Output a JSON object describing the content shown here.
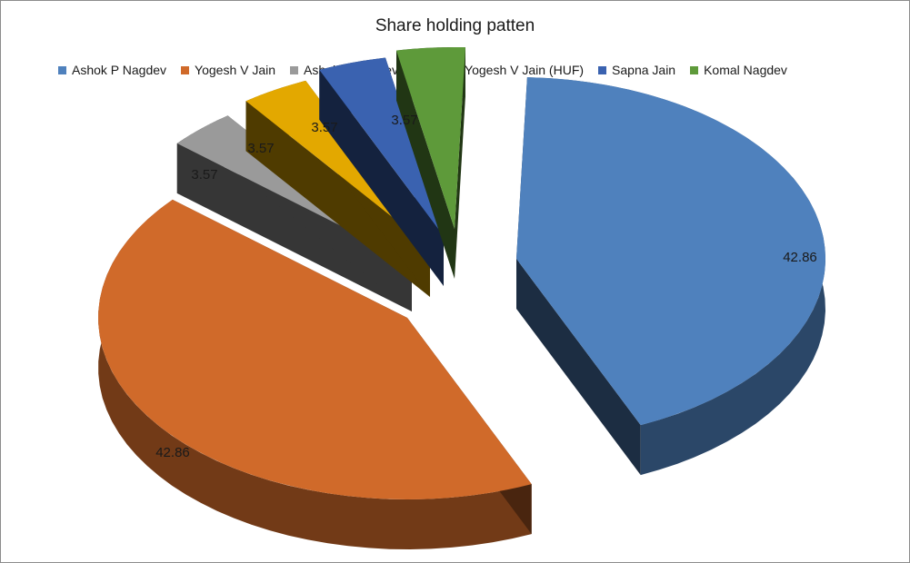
{
  "chart_data": {
    "type": "pie",
    "title": "Share holding patten",
    "legend_position": "top",
    "exploded": true,
    "three_d": true,
    "slices": [
      {
        "name": "Ashok P Nagdev",
        "value": 42.86,
        "label": "42.86",
        "color": "#4f81bd"
      },
      {
        "name": "Yogesh V Jain",
        "value": 42.86,
        "label": "42.86",
        "color": "#d06a2a"
      },
      {
        "name": "Ashok P Nagdev (HUF)",
        "value": 3.57,
        "label": "3.57",
        "color": "#9a9a9a"
      },
      {
        "name": "Yogesh V Jain (HUF)",
        "value": 3.57,
        "label": "3.57",
        "color": "#e3a800"
      },
      {
        "name": "Sapna Jain",
        "value": 3.57,
        "label": "3.57",
        "color": "#3a62b0"
      },
      {
        "name": "Komal Nagdev",
        "value": 3.57,
        "label": "3.57",
        "color": "#5e9a3a"
      }
    ]
  }
}
